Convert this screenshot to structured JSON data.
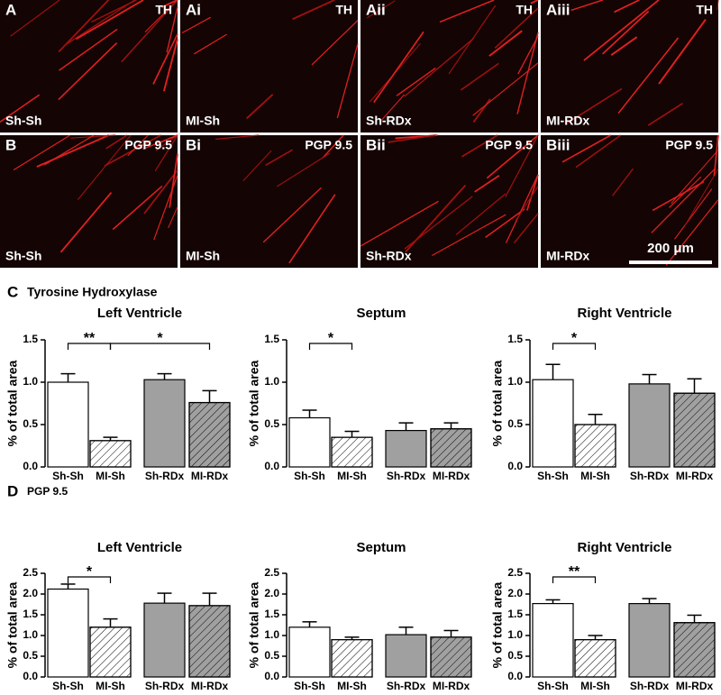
{
  "panels": [
    {
      "letter": "A",
      "stain": "TH",
      "group": "Sh-Sh"
    },
    {
      "letter": "Ai",
      "stain": "TH",
      "group": "MI-Sh"
    },
    {
      "letter": "Aii",
      "stain": "TH",
      "group": "Sh-RDx"
    },
    {
      "letter": "Aiii",
      "stain": "TH",
      "group": "MI-RDx"
    },
    {
      "letter": "B",
      "stain": "PGP 9.5",
      "group": "Sh-Sh"
    },
    {
      "letter": "Bi",
      "stain": "PGP 9.5",
      "group": "MI-Sh"
    },
    {
      "letter": "Bii",
      "stain": "PGP 9.5",
      "group": "Sh-RDx"
    },
    {
      "letter": "Biii",
      "stain": "PGP 9.5",
      "group": "MI-RDx"
    }
  ],
  "scale_bar": "200 μm",
  "sections": [
    {
      "letter": "C",
      "title": "Tyrosine Hydroxylase"
    },
    {
      "letter": "D",
      "title": "PGP 9.5"
    }
  ],
  "chart_data": [
    {
      "type": "bar",
      "title": "Left Ventricle",
      "ylabel": "% of total area",
      "categories": [
        "Sh-Sh",
        "MI-Sh",
        "Sh-RDx",
        "MI-RDx"
      ],
      "values": [
        1.0,
        0.31,
        1.03,
        0.76
      ],
      "errors": [
        0.1,
        0.04,
        0.07,
        0.14
      ],
      "colors": [
        "#ffffff",
        "#ffffff",
        "#a0a0a0",
        "#a0a0a0"
      ],
      "hatch": [
        false,
        true,
        false,
        true
      ],
      "ylim": [
        0,
        1.5
      ],
      "yticks": [
        {
          "value": 0,
          "label": "0.0"
        },
        0.5,
        {
          "value": 1,
          "label": "1.0"
        },
        1.5
      ],
      "significance": [
        {
          "from": 0,
          "to": 1,
          "label": "**"
        },
        {
          "from": 1,
          "to": 3,
          "label": "*"
        }
      ]
    },
    {
      "type": "bar",
      "title": "Septum",
      "ylabel": "% of total area",
      "categories": [
        "Sh-Sh",
        "MI-Sh",
        "Sh-RDx",
        "MI-RDx"
      ],
      "values": [
        0.58,
        0.35,
        0.43,
        0.45
      ],
      "errors": [
        0.09,
        0.07,
        0.09,
        0.07
      ],
      "colors": [
        "#ffffff",
        "#ffffff",
        "#a0a0a0",
        "#a0a0a0"
      ],
      "hatch": [
        false,
        true,
        false,
        true
      ],
      "ylim": [
        0,
        1.5
      ],
      "yticks": [
        {
          "value": 0,
          "label": "0.0"
        },
        0.5,
        {
          "value": 1,
          "label": "1.0"
        },
        1.5
      ],
      "significance": [
        {
          "from": 0,
          "to": 1,
          "label": "*"
        }
      ]
    },
    {
      "type": "bar",
      "title": "Right Ventricle",
      "ylabel": "% of total area",
      "categories": [
        "Sh-Sh",
        "MI-Sh",
        "Sh-RDx",
        "MI-RDx"
      ],
      "values": [
        1.03,
        0.5,
        0.98,
        0.87
      ],
      "errors": [
        0.18,
        0.12,
        0.11,
        0.17
      ],
      "colors": [
        "#ffffff",
        "#ffffff",
        "#a0a0a0",
        "#a0a0a0"
      ],
      "hatch": [
        false,
        true,
        false,
        true
      ],
      "ylim": [
        0,
        1.5
      ],
      "yticks": [
        {
          "value": 0,
          "label": "0.0"
        },
        0.5,
        {
          "value": 1,
          "label": "1.0"
        },
        1.5
      ],
      "significance": [
        {
          "from": 0,
          "to": 1,
          "label": "*"
        }
      ]
    },
    {
      "type": "bar",
      "title": "Left Ventricle",
      "ylabel": "% of total area",
      "categories": [
        "Sh-Sh",
        "MI-Sh",
        "Sh-RDx",
        "MI-RDx"
      ],
      "values": [
        2.12,
        1.2,
        1.78,
        1.72
      ],
      "errors": [
        0.12,
        0.2,
        0.24,
        0.3
      ],
      "colors": [
        "#ffffff",
        "#ffffff",
        "#a0a0a0",
        "#a0a0a0"
      ],
      "hatch": [
        false,
        true,
        false,
        true
      ],
      "ylim": [
        0,
        2.5
      ],
      "yticks": [
        {
          "value": 0,
          "label": "0.0"
        },
        0.5,
        {
          "value": 1,
          "label": "1.0"
        },
        1.5,
        {
          "value": 2,
          "label": "2.0"
        },
        2.5
      ],
      "significance": [
        {
          "from": 0,
          "to": 1,
          "label": "*"
        }
      ]
    },
    {
      "type": "bar",
      "title": "Septum",
      "ylabel": "% of total area",
      "categories": [
        "Sh-Sh",
        "MI-Sh",
        "Sh-RDx",
        "MI-RDx"
      ],
      "values": [
        1.2,
        0.9,
        1.02,
        0.96
      ],
      "errors": [
        0.13,
        0.06,
        0.18,
        0.16
      ],
      "colors": [
        "#ffffff",
        "#ffffff",
        "#a0a0a0",
        "#a0a0a0"
      ],
      "hatch": [
        false,
        true,
        false,
        true
      ],
      "ylim": [
        0,
        2.5
      ],
      "yticks": [
        {
          "value": 0,
          "label": "0.0"
        },
        0.5,
        {
          "value": 1,
          "label": "1.0"
        },
        1.5,
        {
          "value": 2,
          "label": "2.0"
        },
        2.5
      ],
      "significance": []
    },
    {
      "type": "bar",
      "title": "Right Ventricle",
      "ylabel": "% of total area",
      "categories": [
        "Sh-Sh",
        "MI-Sh",
        "Sh-RDx",
        "MI-RDx"
      ],
      "values": [
        1.77,
        0.9,
        1.77,
        1.31
      ],
      "errors": [
        0.09,
        0.1,
        0.12,
        0.18
      ],
      "colors": [
        "#ffffff",
        "#ffffff",
        "#a0a0a0",
        "#a0a0a0"
      ],
      "hatch": [
        false,
        true,
        false,
        true
      ],
      "ylim": [
        0,
        2.5
      ],
      "yticks": [
        {
          "value": 0,
          "label": "0.0"
        },
        0.5,
        {
          "value": 1,
          "label": "1.0"
        },
        1.5,
        {
          "value": 2,
          "label": "2.0"
        },
        2.5
      ],
      "significance": [
        {
          "from": 0,
          "to": 1,
          "label": "**"
        }
      ]
    }
  ]
}
